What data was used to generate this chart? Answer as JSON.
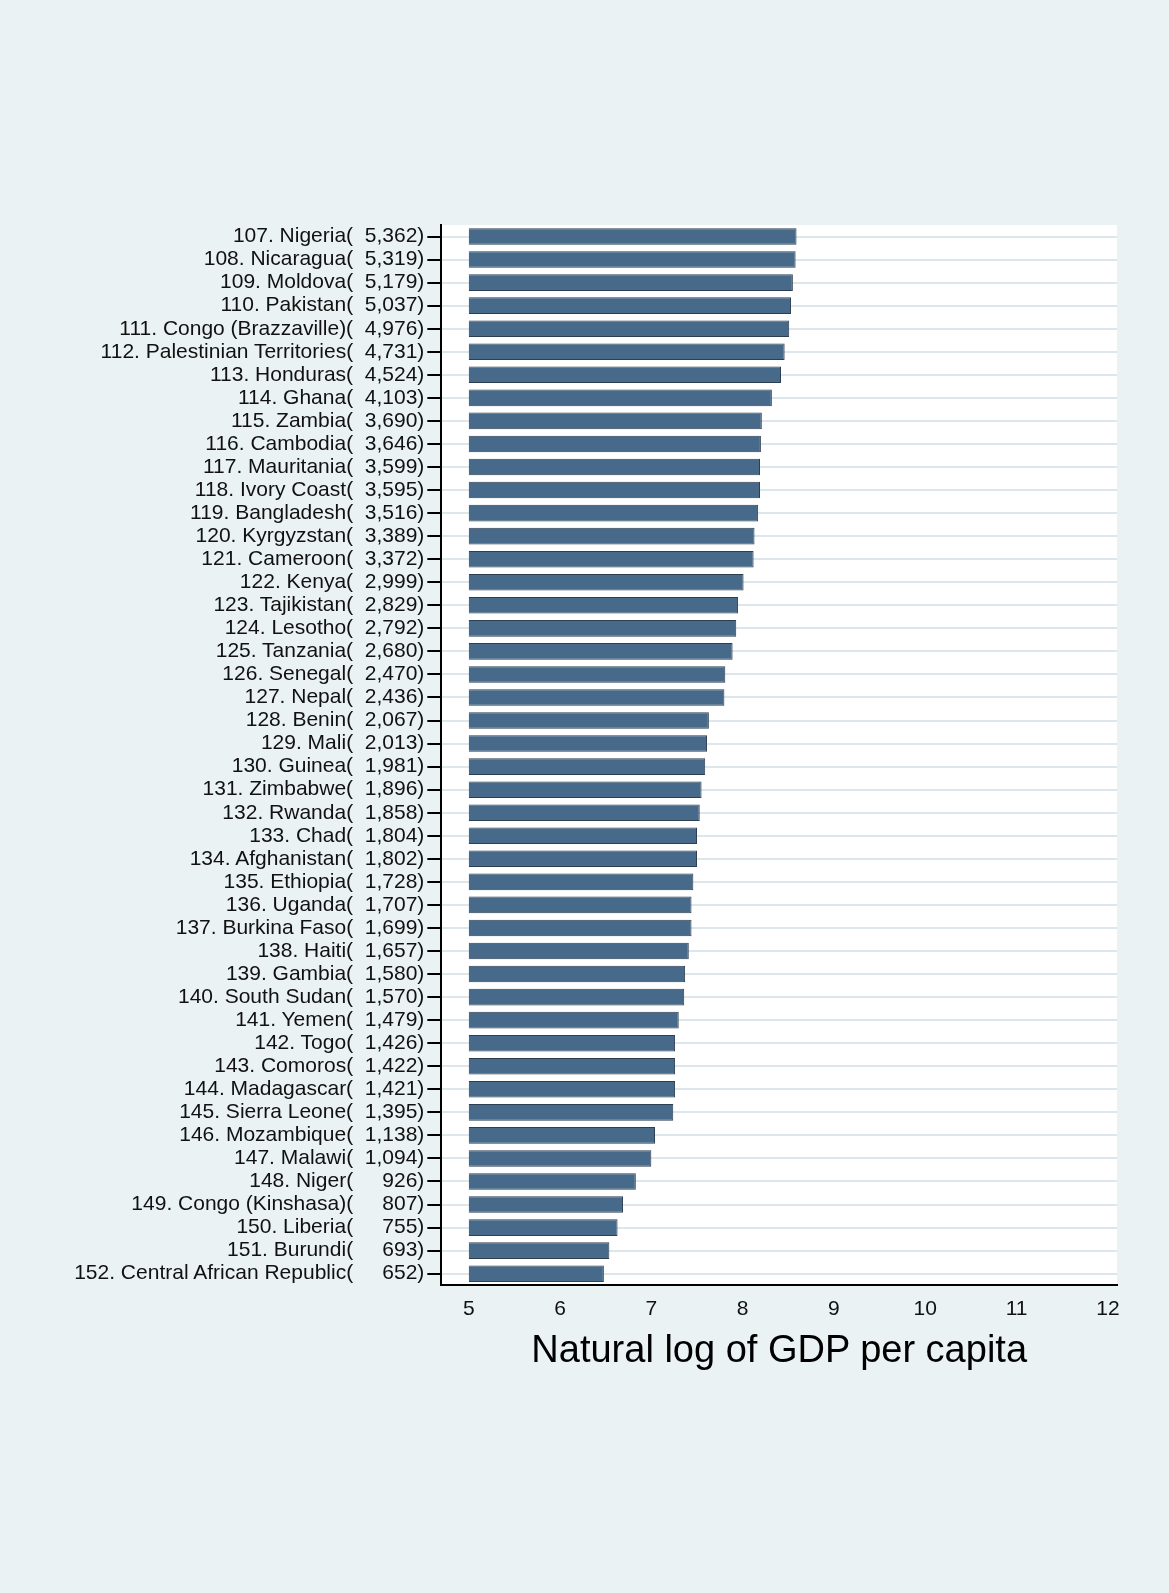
{
  "chart_data": {
    "type": "bar",
    "orientation": "horizontal",
    "xlabel": "Natural log of GDP per capita",
    "categories": [
      "107. Nigeria(  5,362)",
      "108. Nicaragua(  5,319)",
      "109. Moldova(  5,179)",
      "110. Pakistan(  5,037)",
      "111. Congo (Brazzaville)(  4,976)",
      "112. Palestinian Territories(  4,731)",
      "113. Honduras(  4,524)",
      "114. Ghana(  4,103)",
      "115. Zambia(  3,690)",
      "116. Cambodia(  3,646)",
      "117. Mauritania(  3,599)",
      "118. Ivory Coast(  3,595)",
      "119. Bangladesh(  3,516)",
      "120. Kyrgyzstan(  3,389)",
      "121. Cameroon(  3,372)",
      "122. Kenya(  2,999)",
      "123. Tajikistan(  2,829)",
      "124. Lesotho(  2,792)",
      "125. Tanzania(  2,680)",
      "126. Senegal(  2,470)",
      "127. Nepal(  2,436)",
      "128. Benin(  2,067)",
      "129. Mali(  2,013)",
      "130. Guinea(  1,981)",
      "131. Zimbabwe(  1,896)",
      "132. Rwanda(  1,858)",
      "133. Chad(  1,804)",
      "134. Afghanistan(  1,802)",
      "135. Ethiopia(  1,728)",
      "136. Uganda(  1,707)",
      "137. Burkina Faso(  1,699)",
      "138. Haiti(  1,657)",
      "139. Gambia(  1,580)",
      "140. South Sudan(  1,570)",
      "141. Yemen(  1,479)",
      "142. Togo(  1,426)",
      "143. Comoros(  1,422)",
      "144. Madagascar(  1,421)",
      "145. Sierra Leone(  1,395)",
      "146. Mozambique(  1,138)",
      "147. Malawi(  1,094)",
      "148. Niger(     926)",
      "149. Congo (Kinshasa)(     807)",
      "150. Liberia(     755)",
      "151. Burundi(     693)",
      "152. Central African Republic(     652)"
    ],
    "base": [
      5,
      5,
      5,
      5,
      5,
      5,
      5,
      5,
      5,
      5,
      5,
      5,
      5,
      5,
      5,
      5,
      5,
      5,
      5,
      5,
      5,
      5,
      5,
      5,
      5,
      5,
      5,
      5,
      5,
      5,
      5,
      5,
      5,
      5,
      5,
      5,
      5,
      5,
      5,
      5,
      5,
      5,
      5,
      5,
      5,
      5
    ],
    "values": [
      3.59,
      3.58,
      3.55,
      3.53,
      3.51,
      3.46,
      3.42,
      3.32,
      3.21,
      3.2,
      3.19,
      3.19,
      3.17,
      3.13,
      3.12,
      3.01,
      2.95,
      2.93,
      2.89,
      2.81,
      2.8,
      2.63,
      2.61,
      2.59,
      2.55,
      2.53,
      2.5,
      2.5,
      2.46,
      2.44,
      2.44,
      2.41,
      2.37,
      2.36,
      2.3,
      2.26,
      2.26,
      2.26,
      2.24,
      2.04,
      2.0,
      1.83,
      1.69,
      1.63,
      1.54,
      1.48
    ],
    "color": "#476a8a",
    "xlim": [
      4.7,
      12.1
    ],
    "xticks": [
      5,
      6,
      7,
      8,
      9,
      10,
      11,
      12
    ],
    "grid": "y",
    "legend": false
  }
}
